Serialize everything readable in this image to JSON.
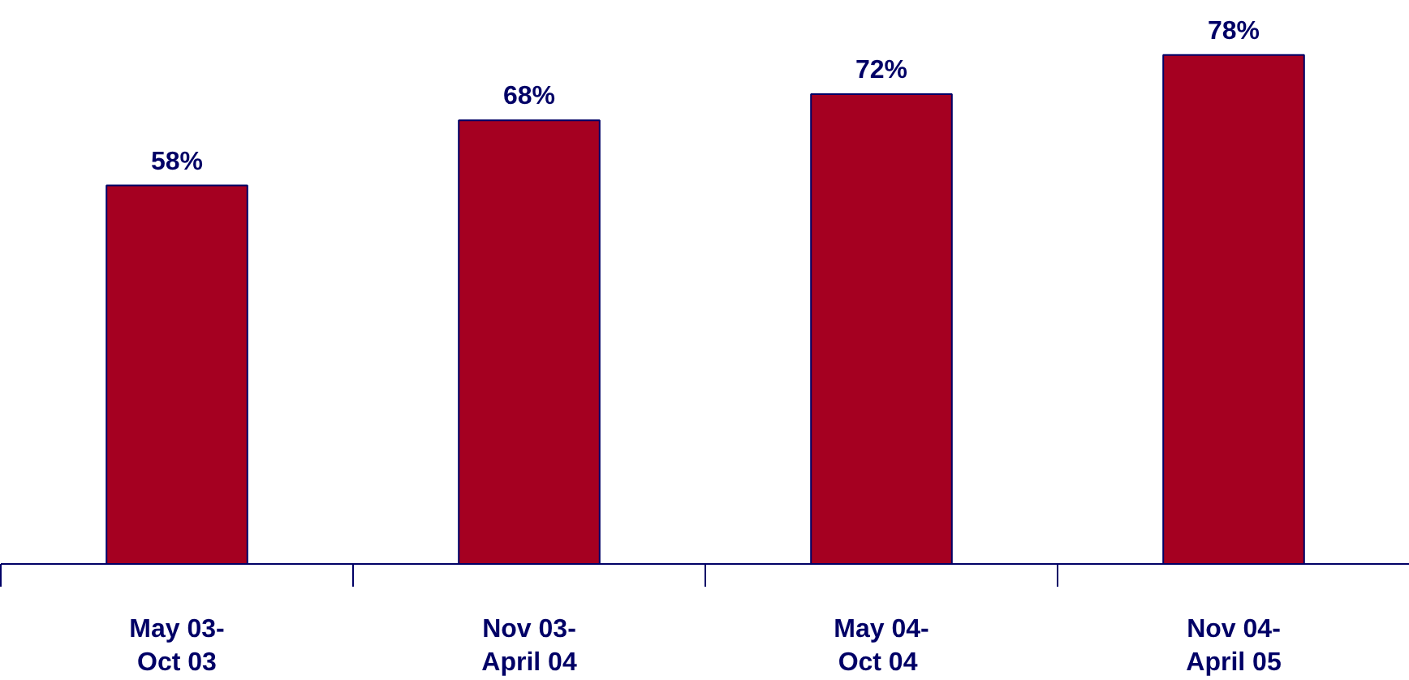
{
  "chart_data": {
    "type": "bar",
    "categories": [
      "May 03-\nOct 03",
      "Nov 03-\nApril 04",
      "May 04-\nOct  04",
      "Nov 04-\nApril 05"
    ],
    "values": [
      58,
      68,
      72,
      78
    ],
    "value_labels": [
      "58%",
      "68%",
      "72%",
      "78%"
    ],
    "color": "#a50021"
  }
}
